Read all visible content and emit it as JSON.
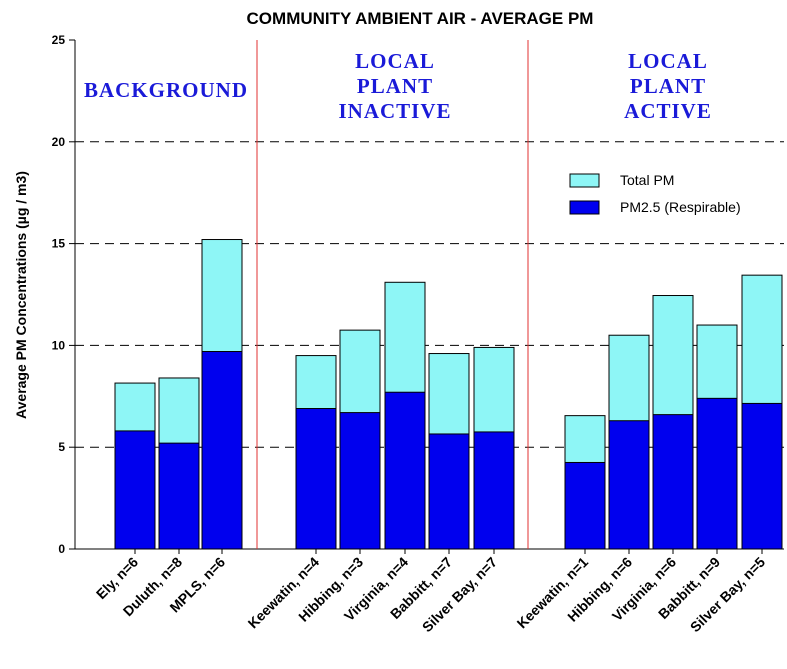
{
  "chart_data": {
    "type": "bar",
    "title": "COMMUNITY AMBIENT AIR - AVERAGE PM",
    "ylabel": "Average PM Concentrations (µg / m3)",
    "groups": [
      {
        "label_lines": [
          "BACKGROUND"
        ]
      },
      {
        "label_lines": [
          "LOCAL",
          "PLANT",
          "INACTIVE"
        ]
      },
      {
        "label_lines": [
          "LOCAL",
          "PLANT",
          "ACTIVE"
        ]
      }
    ],
    "categories": [
      "Ely, n=6",
      "Duluth, n=8",
      "MPLS, n=6",
      "Keewatin, n=4",
      "Hibbing, n=3",
      "Virginia, n=4",
      "Babbitt, n=7",
      "Silver Bay, n=7",
      "Keewatin, n=1",
      "Hibbing, n=6",
      "Virginia, n=6",
      "Babbitt, n=9",
      "Silver Bay, n=5"
    ],
    "series": [
      {
        "name": "Total PM",
        "color": "#8ef6f6",
        "values": [
          8.15,
          8.4,
          15.2,
          9.5,
          10.75,
          13.1,
          9.6,
          9.9,
          6.55,
          10.5,
          12.45,
          11.0,
          13.45
        ]
      },
      {
        "name": "PM2.5 (Respirable)",
        "color": "#0000ee",
        "values": [
          5.8,
          5.2,
          9.7,
          6.9,
          6.7,
          7.7,
          5.65,
          5.75,
          4.25,
          6.3,
          6.6,
          7.4,
          7.15
        ]
      }
    ],
    "ylim": [
      0,
      25
    ],
    "yticks": [
      0,
      5,
      10,
      15,
      20,
      25
    ],
    "grid": true
  }
}
